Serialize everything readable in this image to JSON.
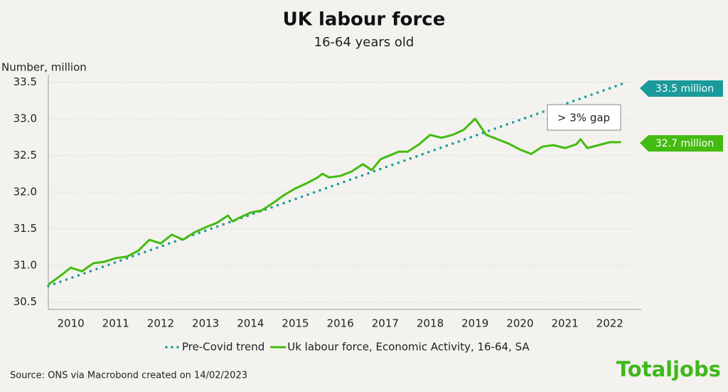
{
  "chart_data": {
    "type": "line",
    "title": "UK labour force",
    "subtitle": "16-64 years old",
    "y_label": "Number, million",
    "xlim": [
      2010,
      2023.2
    ],
    "xticks": [
      {
        "value": 2010.5,
        "label": "2010"
      },
      {
        "value": 2011.5,
        "label": "2011"
      },
      {
        "value": 2012.5,
        "label": "2012"
      },
      {
        "value": 2013.5,
        "label": "2013"
      },
      {
        "value": 2014.5,
        "label": "2014"
      },
      {
        "value": 2015.5,
        "label": "2015"
      },
      {
        "value": 2016.5,
        "label": "2016"
      },
      {
        "value": 2017.5,
        "label": "2017"
      },
      {
        "value": 2018.5,
        "label": "2018"
      },
      {
        "value": 2019.5,
        "label": "2019"
      },
      {
        "value": 2020.5,
        "label": "2020"
      },
      {
        "value": 2021.5,
        "label": "2021"
      },
      {
        "value": 2022.5,
        "label": "2022"
      }
    ],
    "ylim": [
      30.4,
      33.6
    ],
    "yticks": [
      30.5,
      {
        "value": 31,
        "label": "31.0"
      },
      31.5,
      {
        "value": 32,
        "label": "32.0"
      },
      32.5,
      {
        "value": 33,
        "label": "33.0"
      },
      33.5
    ],
    "grid": true,
    "series": [
      {
        "name": "Pre-Covid trend",
        "color": "#1a9a9a",
        "style": "dotted",
        "x": [
          2010,
          2022.8
        ],
        "values": [
          30.72,
          33.48
        ]
      },
      {
        "name": "Uk labour force, Economic Activity, 16-64, SA",
        "color": "#44bb11",
        "style": "solid",
        "x": [
          2010,
          2010.25,
          2010.5,
          2010.75,
          2011,
          2011.25,
          2011.5,
          2011.75,
          2012,
          2012.25,
          2012.5,
          2012.75,
          2013,
          2013.25,
          2013.5,
          2013.75,
          2014,
          2014.1,
          2014.25,
          2014.5,
          2014.75,
          2015,
          2015.25,
          2015.5,
          2015.75,
          2016,
          2016.1,
          2016.25,
          2016.5,
          2016.75,
          2017,
          2017.2,
          2017.4,
          2017.6,
          2017.8,
          2018,
          2018.25,
          2018.5,
          2018.75,
          2019,
          2019.25,
          2019.5,
          2019.75,
          2020,
          2020.25,
          2020.5,
          2020.75,
          2021,
          2021.25,
          2021.5,
          2021.75,
          2021.85,
          2022,
          2022.25,
          2022.5,
          2022.75
        ],
        "values": [
          30.74,
          30.85,
          30.97,
          30.92,
          31.03,
          31.05,
          31.1,
          31.12,
          31.2,
          31.35,
          31.3,
          31.42,
          31.35,
          31.45,
          31.52,
          31.58,
          31.68,
          31.6,
          31.65,
          31.72,
          31.75,
          31.85,
          31.96,
          32.05,
          32.12,
          32.2,
          32.25,
          32.2,
          32.22,
          32.28,
          32.38,
          32.3,
          32.45,
          32.5,
          32.55,
          32.55,
          32.65,
          32.78,
          32.74,
          32.78,
          32.85,
          33.0,
          32.78,
          32.72,
          32.66,
          32.58,
          32.52,
          32.62,
          32.64,
          32.6,
          32.65,
          32.72,
          32.6,
          32.64,
          32.68,
          32.68
        ]
      }
    ],
    "annotations": [
      "33.5 million",
      "32.7 million",
      "> 3% gap"
    ],
    "source": "Source: ONS via Macrobond created on 14/02/2023",
    "logo": "Totaljobs"
  }
}
